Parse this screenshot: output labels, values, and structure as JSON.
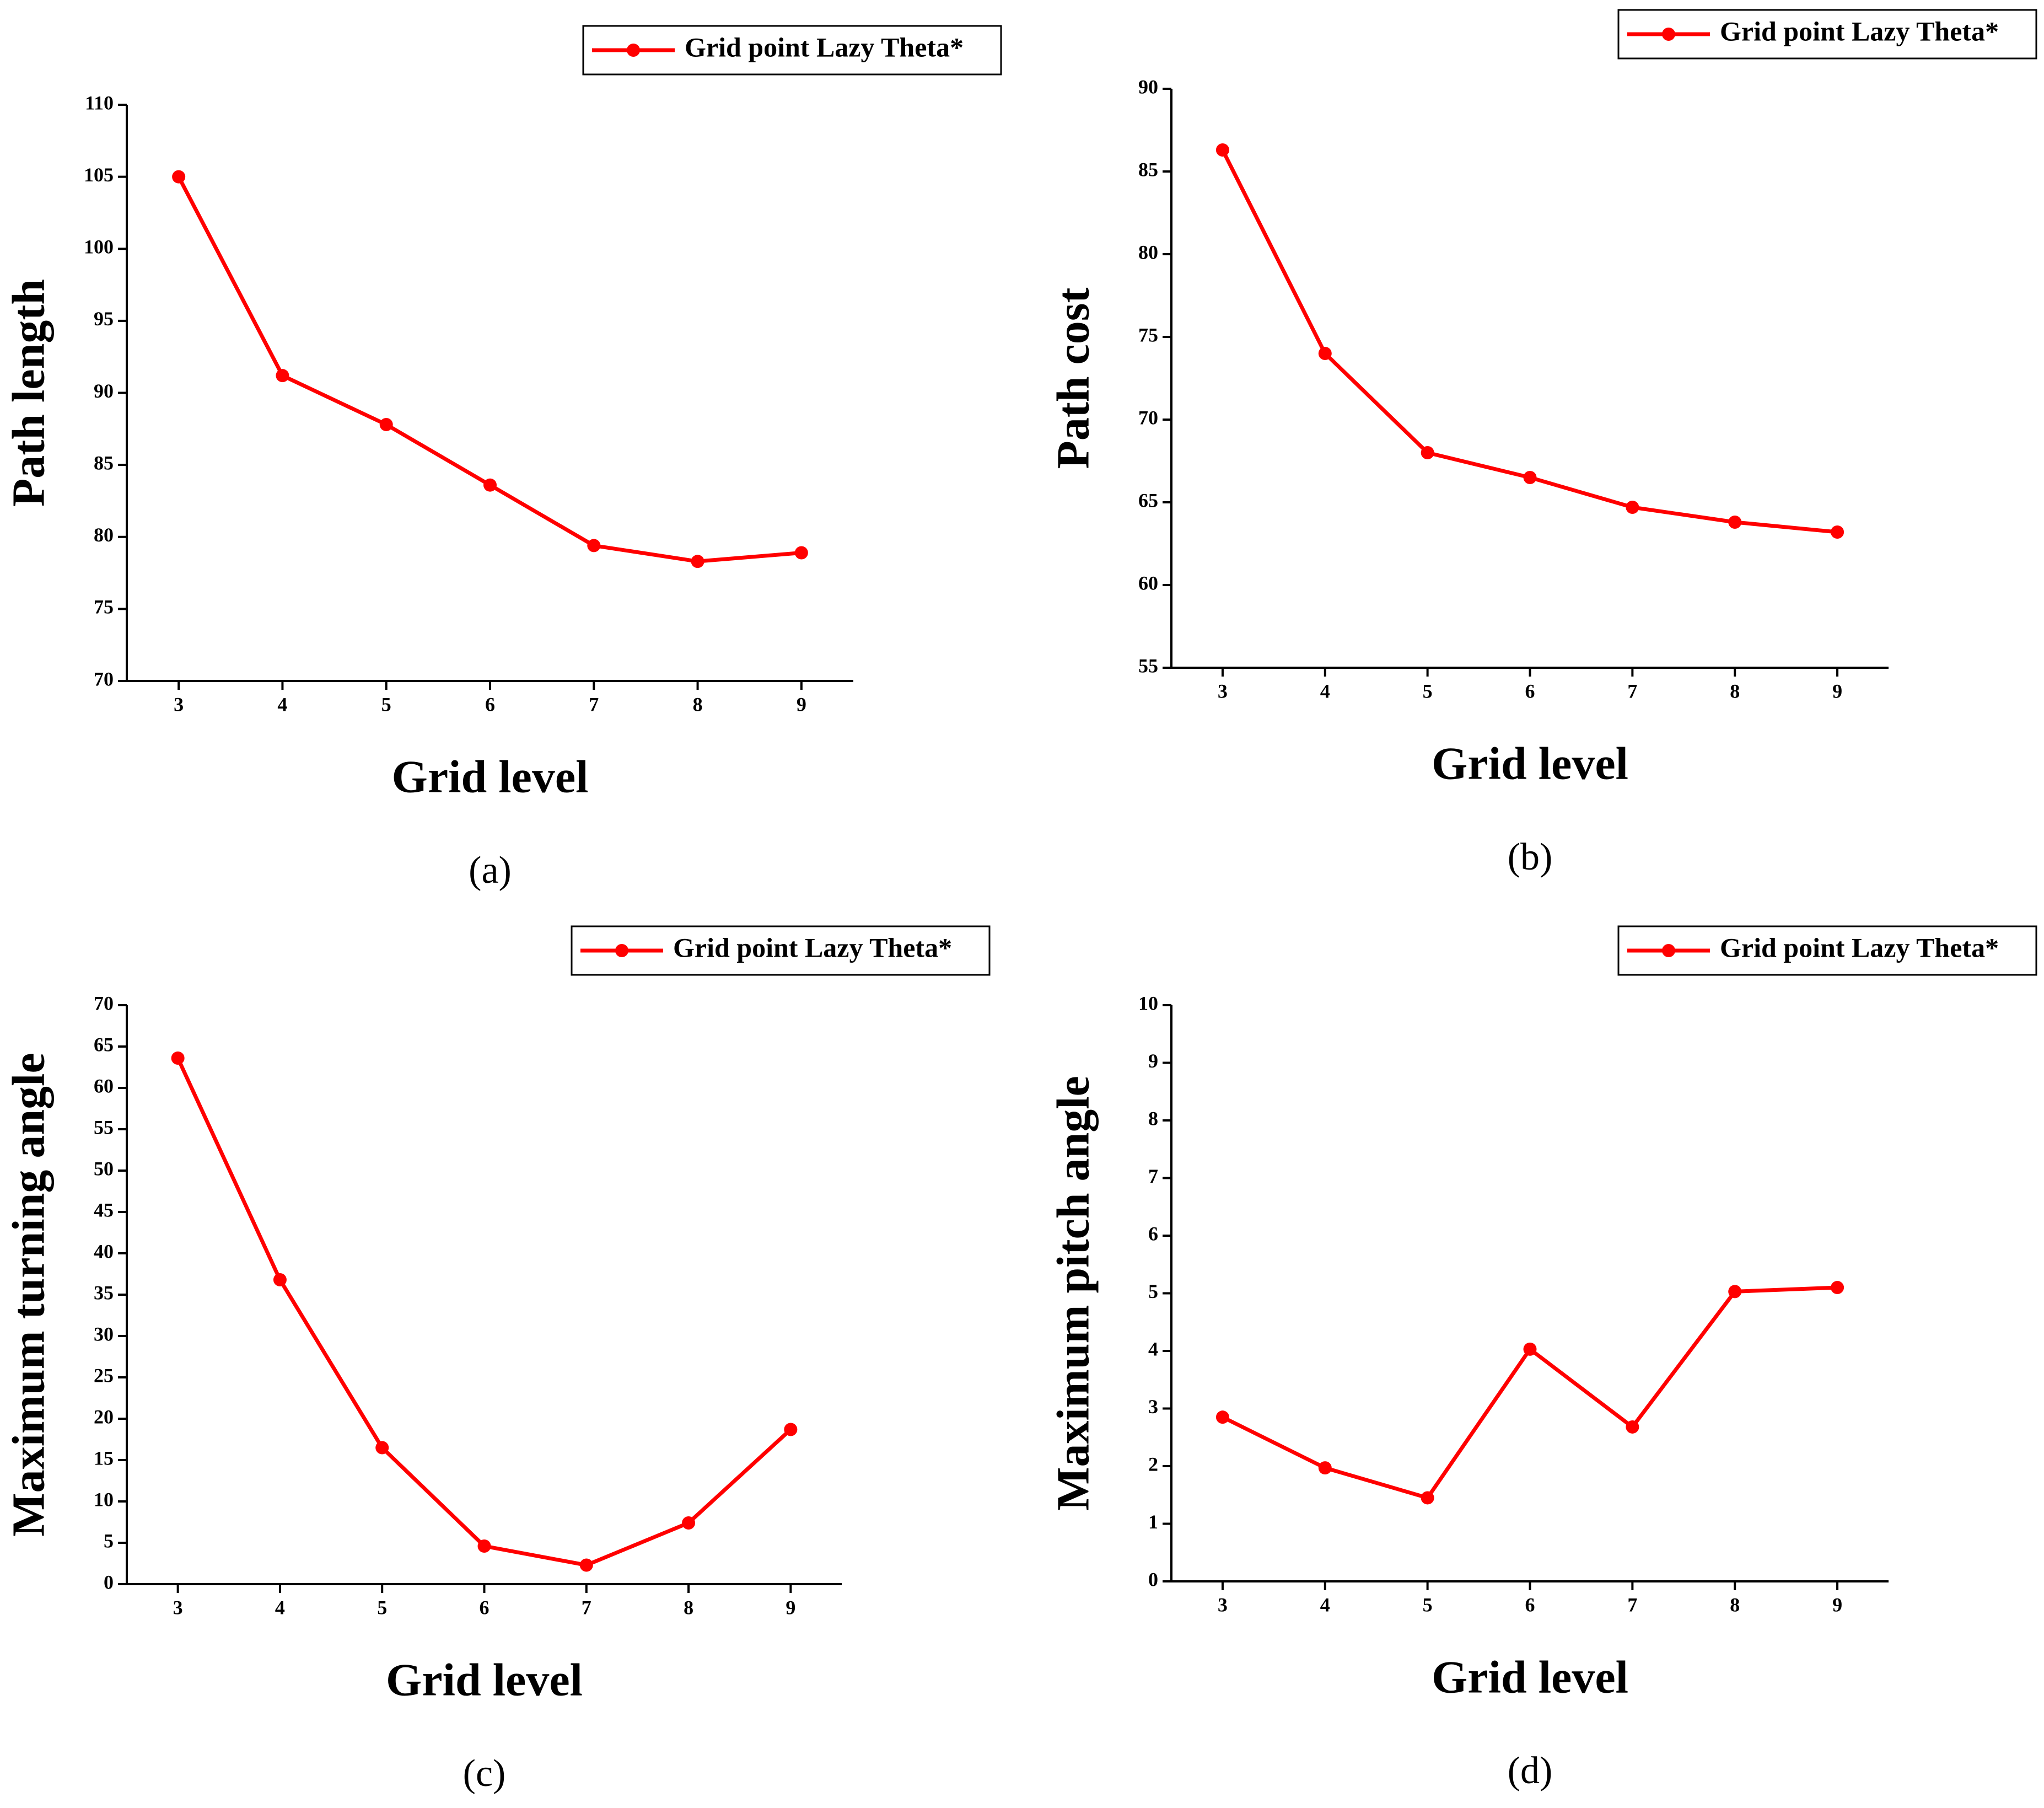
{
  "chart_data": [
    {
      "type": "line",
      "ylabel": "Path length",
      "xlabel": "Grid level",
      "caption": "(a)",
      "x": [
        3,
        4,
        5,
        6,
        7,
        8,
        9
      ],
      "xlim": [
        2.5,
        9.5
      ],
      "xticks": [
        3,
        4,
        5,
        6,
        7,
        8,
        9
      ],
      "ylim": [
        70,
        110
      ],
      "yticks": [
        70,
        75,
        80,
        85,
        90,
        95,
        100,
        105,
        110
      ],
      "legend": "upper right",
      "series": [
        {
          "name": "Grid point Lazy Theta*",
          "color": "#ff0000",
          "values": [
            105,
            91.2,
            87.8,
            83.6,
            79.4,
            78.3,
            78.9
          ]
        }
      ]
    },
    {
      "type": "line",
      "ylabel": "Path cost",
      "xlabel": "Grid level",
      "caption": "(b)",
      "x": [
        3,
        4,
        5,
        6,
        7,
        8,
        9
      ],
      "xlim": [
        2.5,
        9.5
      ],
      "xticks": [
        3,
        4,
        5,
        6,
        7,
        8,
        9
      ],
      "ylim": [
        55,
        90
      ],
      "yticks": [
        55,
        60,
        65,
        70,
        75,
        80,
        85,
        90
      ],
      "legend": "upper right",
      "series": [
        {
          "name": "Grid point Lazy Theta*",
          "color": "#ff0000",
          "values": [
            86.3,
            74,
            68,
            66.5,
            64.7,
            63.8,
            63.2
          ]
        }
      ]
    },
    {
      "type": "line",
      "ylabel": "Maximum turning angle",
      "xlabel": "Grid level",
      "caption": "(c)",
      "x": [
        3,
        4,
        5,
        6,
        7,
        8,
        9
      ],
      "xlim": [
        2.5,
        9.5
      ],
      "xticks": [
        3,
        4,
        5,
        6,
        7,
        8,
        9
      ],
      "ylim": [
        0,
        70
      ],
      "yticks": [
        0,
        5,
        10,
        15,
        20,
        25,
        30,
        35,
        40,
        45,
        50,
        55,
        60,
        65,
        70
      ],
      "legend": "upper right",
      "series": [
        {
          "name": "Grid point Lazy Theta*",
          "color": "#ff0000",
          "values": [
            63.6,
            36.8,
            16.5,
            4.6,
            2.3,
            7.4,
            18.7
          ]
        }
      ]
    },
    {
      "type": "line",
      "ylabel": "Maximum pitch angle",
      "xlabel": "Grid level",
      "caption": "(d)",
      "x": [
        3,
        4,
        5,
        6,
        7,
        8,
        9
      ],
      "xlim": [
        2.5,
        9.5
      ],
      "xticks": [
        3,
        4,
        5,
        6,
        7,
        8,
        9
      ],
      "ylim": [
        0,
        10
      ],
      "yticks": [
        0,
        1,
        2,
        3,
        4,
        5,
        6,
        7,
        8,
        9,
        10
      ],
      "legend": "upper right",
      "series": [
        {
          "name": "Grid point Lazy Theta*",
          "color": "#ff0000",
          "values": [
            2.85,
            1.97,
            1.45,
            4.03,
            2.68,
            5.03,
            5.1
          ]
        }
      ]
    }
  ]
}
